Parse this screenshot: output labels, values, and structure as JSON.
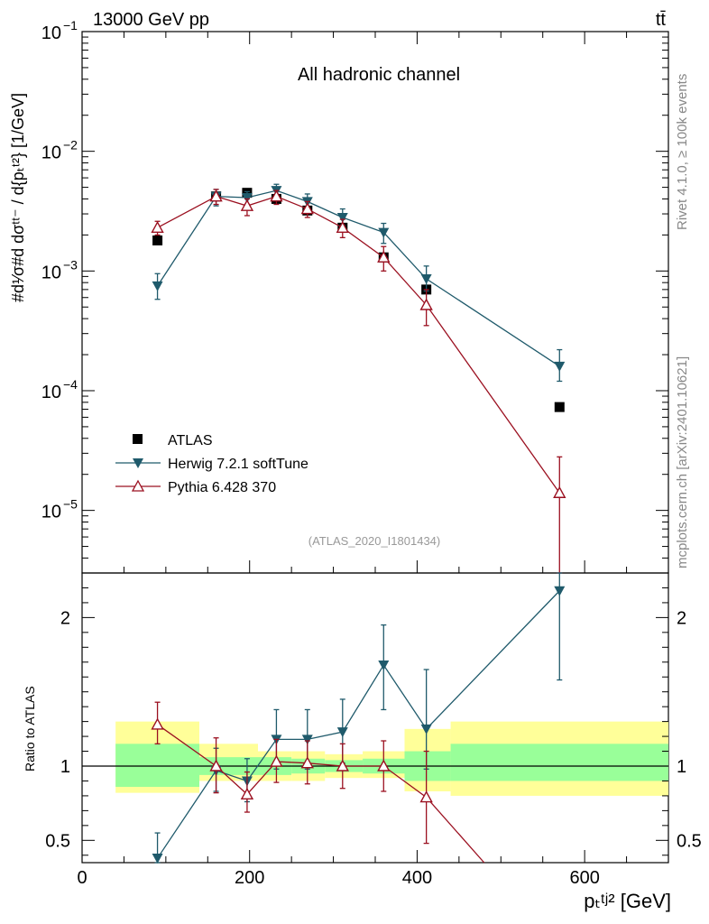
{
  "header": {
    "energy_label": "13000 GeV pp",
    "process_label": "tt̄"
  },
  "side": {
    "rivet": "Rivet 4.1.0, ≥ 100k events",
    "source": "mcplots.cern.ch [arXiv:2401.10621]"
  },
  "main": {
    "channel_label": "All hadronic channel",
    "analysis_label": "(ATLAS_2020_I1801434)",
    "ylabel": "#d¹⁄σ#d dσᵗᵗ⁻ / d{pₜᵗ²} [1/GeV]"
  },
  "ratio": {
    "ylabel": "Ratio to ATLAS"
  },
  "xaxis": {
    "label": "pₜᵗʲ² [GeV]",
    "ticks": [
      "0",
      "200",
      "400",
      "600"
    ]
  },
  "chart_data": [
    {
      "type": "scatter",
      "yscale": "log",
      "xlim": [
        0,
        700
      ],
      "ylim": [
        3e-06,
        0.1
      ],
      "y_ticks": [
        {
          "value": 0.1,
          "base": "10",
          "exp": "−1"
        },
        {
          "value": 0.01,
          "base": "10",
          "exp": "−2"
        },
        {
          "value": 0.001,
          "base": "10",
          "exp": "−3"
        },
        {
          "value": 0.0001,
          "base": "10",
          "exp": "−4"
        },
        {
          "value": 1e-05,
          "base": "10",
          "exp": "−5"
        }
      ],
      "series": [
        {
          "name": "ATLAS",
          "color": "#000000",
          "marker": "square",
          "x": [
            90,
            160,
            197,
            232,
            269,
            311,
            360,
            411,
            570
          ],
          "y": [
            0.0018,
            0.0042,
            0.0045,
            0.004,
            0.0032,
            0.0023,
            0.0013,
            0.0007,
            7.3e-05
          ]
        },
        {
          "name": "Herwig 7.2.1 softTune",
          "color": "#1f5a6b",
          "marker": "triangle-down",
          "x": [
            90,
            160,
            197,
            232,
            269,
            311,
            360,
            411,
            570
          ],
          "y": [
            0.00075,
            0.0042,
            0.0041,
            0.0047,
            0.0038,
            0.0028,
            0.0021,
            0.00086,
            0.00016
          ],
          "err_lo": [
            0.00058,
            0.0035,
            0.0036,
            0.0041,
            0.0033,
            0.0024,
            0.0017,
            0.00068,
            0.00012
          ],
          "err_hi": [
            0.00095,
            0.0048,
            0.0046,
            0.0053,
            0.0044,
            0.0033,
            0.0025,
            0.0011,
            0.00022
          ]
        },
        {
          "name": "Pythia 6.428 370",
          "color": "#9b1020",
          "marker": "triangle-up-open",
          "x": [
            90,
            160,
            197,
            232,
            269,
            311,
            360,
            411,
            570
          ],
          "y": [
            0.0023,
            0.0042,
            0.0035,
            0.0042,
            0.0033,
            0.0023,
            0.0013,
            0.00052,
            1.4e-05
          ],
          "err_lo": [
            0.002,
            0.0036,
            0.0029,
            0.0036,
            0.0028,
            0.0019,
            0.001,
            0.00035,
            3e-06
          ],
          "err_hi": [
            0.0026,
            0.0048,
            0.004,
            0.0047,
            0.0038,
            0.0027,
            0.0016,
            0.0007,
            2.8e-05
          ]
        }
      ]
    },
    {
      "type": "line",
      "xlim": [
        0,
        700
      ],
      "ylim": [
        0.35,
        2.3
      ],
      "y_ticks": [
        {
          "value": 0.5,
          "label": "0.5"
        },
        {
          "value": 1,
          "label": "1"
        },
        {
          "value": 2,
          "label": "2"
        }
      ],
      "bands": [
        {
          "x0": 40,
          "x1": 140,
          "inner": [
            0.86,
            1.15
          ],
          "outer": [
            0.82,
            1.3
          ]
        },
        {
          "x0": 140,
          "x1": 210,
          "inner": [
            0.94,
            1.06
          ],
          "outer": [
            0.9,
            1.15
          ]
        },
        {
          "x0": 210,
          "x1": 250,
          "inner": [
            0.94,
            1.06
          ],
          "outer": [
            0.9,
            1.1
          ]
        },
        {
          "x0": 250,
          "x1": 290,
          "inner": [
            0.95,
            1.05
          ],
          "outer": [
            0.9,
            1.1
          ]
        },
        {
          "x0": 290,
          "x1": 335,
          "inner": [
            0.96,
            1.04
          ],
          "outer": [
            0.92,
            1.08
          ]
        },
        {
          "x0": 335,
          "x1": 385,
          "inner": [
            0.95,
            1.05
          ],
          "outer": [
            0.92,
            1.1
          ]
        },
        {
          "x0": 385,
          "x1": 440,
          "inner": [
            0.9,
            1.1
          ],
          "outer": [
            0.83,
            1.25
          ]
        },
        {
          "x0": 440,
          "x1": 700,
          "inner": [
            0.9,
            1.15
          ],
          "outer": [
            0.8,
            1.3
          ]
        }
      ],
      "series": [
        {
          "name": "Herwig 7.2.1 softTune",
          "color": "#1f5a6b",
          "marker": "triangle-down",
          "x": [
            90,
            160,
            197,
            232,
            269,
            311,
            360,
            411,
            570
          ],
          "y": [
            0.38,
            0.97,
            0.9,
            1.18,
            1.18,
            1.23,
            1.68,
            1.25,
            2.18
          ],
          "err_lo": [
            0.2,
            0.83,
            0.76,
            0.98,
            0.98,
            1.02,
            1.38,
            0.98,
            1.58
          ],
          "err_hi": [
            0.55,
            1.12,
            1.05,
            1.38,
            1.38,
            1.45,
            1.95,
            1.65,
            2.3
          ]
        },
        {
          "name": "Pythia 6.428 370",
          "color": "#9b1020",
          "marker": "triangle-up-open",
          "x": [
            90,
            160,
            197,
            232,
            269,
            311,
            360,
            411,
            480
          ],
          "y": [
            1.28,
            1.0,
            0.81,
            1.03,
            1.02,
            1.0,
            1.0,
            0.79,
            0.35
          ],
          "err_lo": [
            1.15,
            0.82,
            0.69,
            0.89,
            0.88,
            0.85,
            0.83,
            0.48,
            0.35
          ],
          "err_hi": [
            1.43,
            1.19,
            0.96,
            1.18,
            1.17,
            1.15,
            1.17,
            1.1,
            0.35
          ],
          "offscale_last": true
        }
      ]
    }
  ],
  "legend": [
    {
      "name": "ATLAS"
    },
    {
      "name": "Herwig 7.2.1 softTune"
    },
    {
      "name": "Pythia 6.428 370"
    }
  ]
}
